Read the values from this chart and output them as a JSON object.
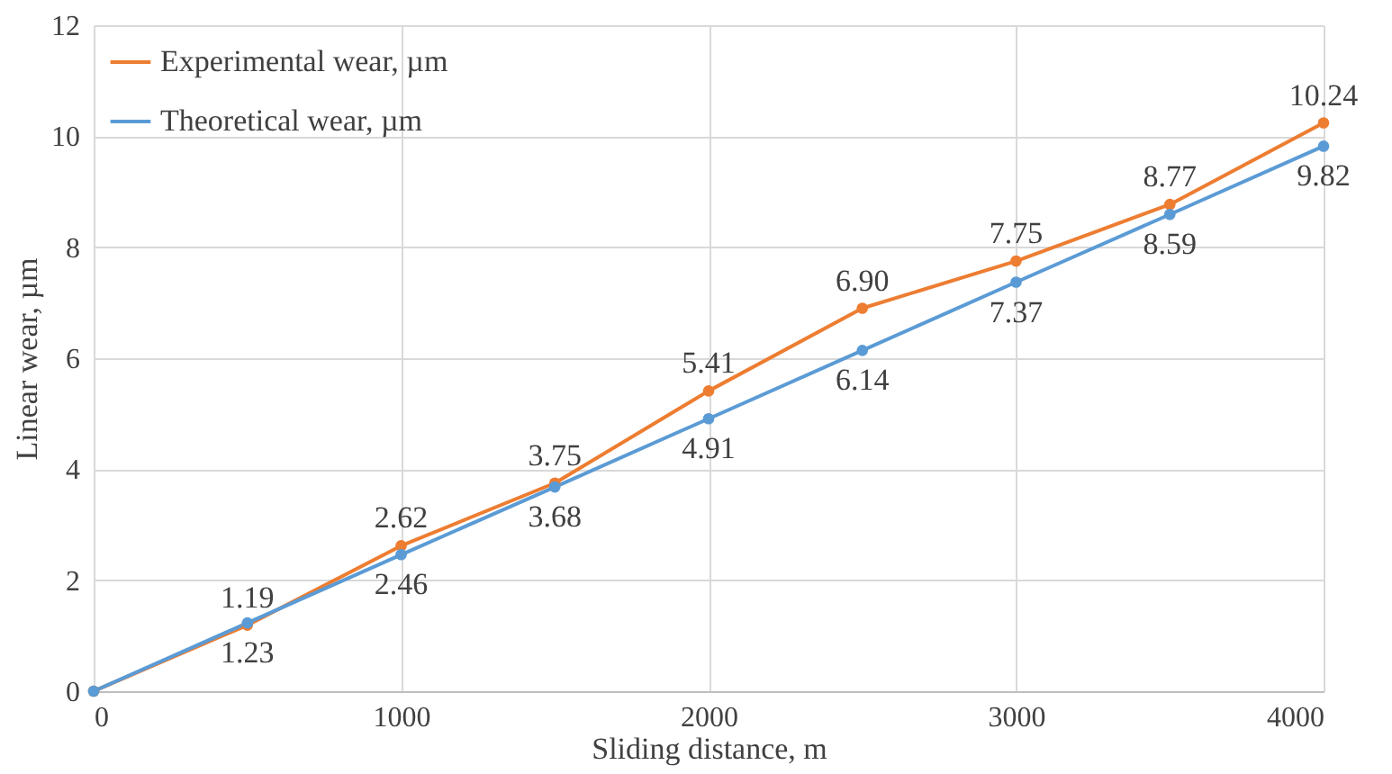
{
  "chart_data": {
    "type": "line",
    "xlabel": "Sliding distance, m",
    "ylabel": "Linear wear, µm",
    "x": [
      0,
      500,
      1000,
      1500,
      2000,
      2500,
      3000,
      3500,
      4000
    ],
    "series": [
      {
        "name": "Experimental wear, µm",
        "color": "#ed7d31",
        "values": [
          0,
          1.19,
          2.62,
          3.75,
          5.41,
          6.9,
          7.75,
          8.77,
          10.24
        ],
        "value_labels": [
          null,
          "1.19",
          "2.62",
          "3.75",
          "5.41",
          "6.90",
          "7.75",
          "8.77",
          "10.24"
        ]
      },
      {
        "name": "Theoretical wear, µm",
        "color": "#5b9bd5",
        "values": [
          0,
          1.23,
          2.46,
          3.68,
          4.91,
          6.14,
          7.37,
          8.59,
          9.82
        ],
        "value_labels": [
          null,
          "1.23",
          "2.46",
          "3.68",
          "4.91",
          "6.14",
          "7.37",
          "8.59",
          "9.82"
        ]
      }
    ],
    "xlim": [
      0,
      4000
    ],
    "xticks": [
      0,
      1000,
      2000,
      3000,
      4000
    ],
    "ylim": [
      0,
      12
    ],
    "yticks": [
      0,
      2,
      4,
      6,
      8,
      10,
      12
    ],
    "grid": true,
    "legend": "top left",
    "marker": "circle",
    "line_style": "solid"
  }
}
